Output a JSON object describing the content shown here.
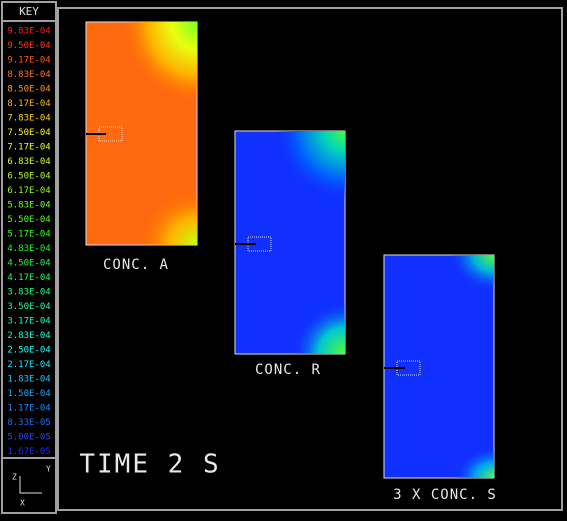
{
  "key": {
    "title": "KEY",
    "labels": [
      "9.83E-04",
      "9.50E-04",
      "9.17E-04",
      "8.83E-04",
      "8.50E-04",
      "8.17E-04",
      "7.83E-04",
      "7.50E-04",
      "7.17E-04",
      "6.83E-04",
      "6.50E-04",
      "6.17E-04",
      "5.83E-04",
      "5.50E-04",
      "5.17E-04",
      "4.83E-04",
      "4.50E-04",
      "4.17E-04",
      "3.83E-04",
      "3.50E-04",
      "3.17E-04",
      "2.83E-04",
      "2.50E-04",
      "2.17E-04",
      "1.83E-04",
      "1.50E-04",
      "1.17E-04",
      "8.33E-05",
      "5.00E-05",
      "1.67E-05"
    ]
  },
  "panels": [
    {
      "label": "CONC. A"
    },
    {
      "label": "CONC. R"
    },
    {
      "label": "3 X CONC. S"
    }
  ],
  "time_label": "TIME 2 S",
  "triad": {
    "y": "Y",
    "z": "Z",
    "x": "X"
  }
}
